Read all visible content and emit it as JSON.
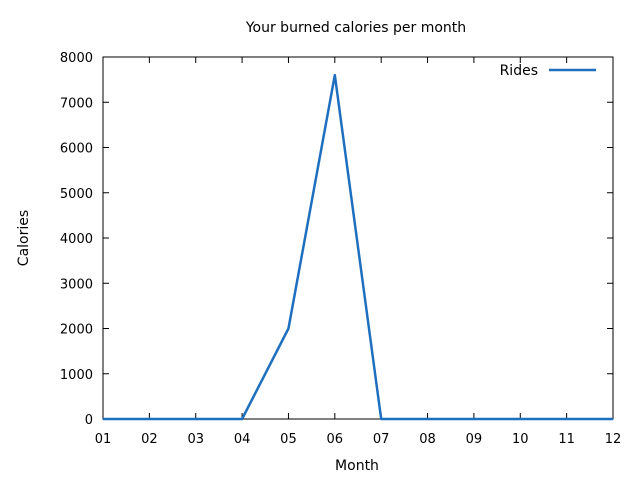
{
  "chart_data": {
    "type": "line",
    "title": "Your burned calories per month",
    "xlabel": "Month",
    "ylabel": "Calories",
    "categories": [
      "01",
      "02",
      "03",
      "04",
      "05",
      "06",
      "07",
      "08",
      "09",
      "10",
      "11",
      "12"
    ],
    "series": [
      {
        "name": "Rides",
        "color": "#1f6fbf",
        "values": [
          0,
          0,
          0,
          0,
          2000,
          7600,
          0,
          0,
          0,
          0,
          0,
          0
        ]
      }
    ],
    "ylim": [
      0,
      8000
    ],
    "yticks": [
      0,
      1000,
      2000,
      3000,
      4000,
      5000,
      6000,
      7000,
      8000
    ],
    "grid": false,
    "legend_position": "top-right"
  }
}
